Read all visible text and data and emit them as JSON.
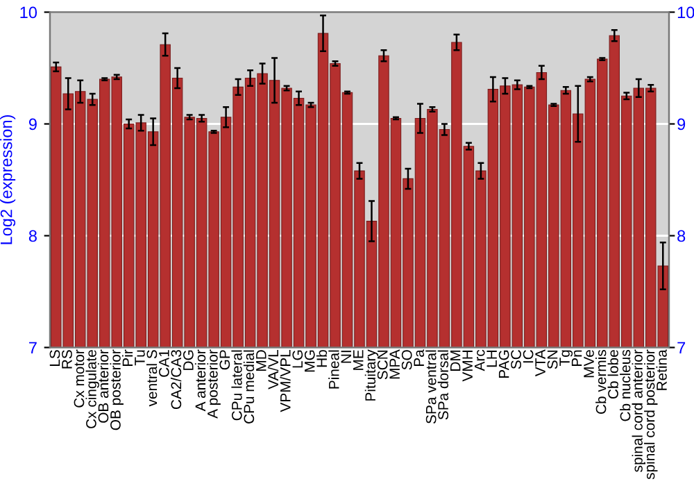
{
  "chart_data": {
    "type": "bar",
    "ylabel": "Log2 (expression)",
    "categories": [
      "LS",
      "RS",
      "Cx motor",
      "Cx cingulate",
      "OB anterior",
      "OB posterior",
      "Pir",
      "Tu",
      "ventral S",
      "CA1",
      "CA2/CA3",
      "DG",
      "A anterior",
      "A posterior",
      "GP",
      "CPu lateral",
      "CPu medial",
      "MD",
      "VA/VL",
      "VPM/VPL",
      "LG",
      "MG",
      "Hb",
      "Pineal",
      "NI",
      "ME",
      "Pituitary",
      "SCN",
      "MPA",
      "SO",
      "Pa",
      "SPa ventral",
      "SPa dorsal",
      "DM",
      "VMH",
      "Arc",
      "LH",
      "PAG",
      "SC",
      "IC",
      "VTA",
      "SN",
      "Tg",
      "Pn",
      "MVe",
      "Cb vermis",
      "Cb lobe",
      "Cb nucleus",
      "spinal cord anterior",
      "spinal cord posterior",
      "Retina"
    ],
    "values": [
      9.51,
      9.27,
      9.29,
      9.22,
      9.4,
      9.42,
      9.0,
      9.01,
      8.93,
      9.71,
      9.41,
      9.06,
      9.05,
      8.93,
      9.06,
      9.33,
      9.41,
      9.45,
      9.39,
      9.32,
      9.23,
      9.17,
      9.81,
      9.54,
      9.28,
      8.58,
      8.13,
      9.61,
      9.05,
      8.51,
      9.05,
      9.13,
      8.95,
      9.73,
      8.8,
      8.58,
      9.31,
      9.34,
      9.35,
      9.33,
      9.46,
      9.17,
      9.3,
      9.09,
      9.4,
      9.58,
      9.79,
      9.25,
      9.32,
      9.32,
      7.73
    ],
    "errors": [
      0.04,
      0.14,
      0.1,
      0.05,
      0.01,
      0.02,
      0.04,
      0.07,
      0.12,
      0.1,
      0.09,
      0.02,
      0.03,
      0.01,
      0.09,
      0.07,
      0.07,
      0.09,
      0.2,
      0.02,
      0.06,
      0.02,
      0.16,
      0.02,
      0.01,
      0.07,
      0.18,
      0.05,
      0.01,
      0.09,
      0.13,
      0.02,
      0.05,
      0.07,
      0.03,
      0.07,
      0.11,
      0.07,
      0.04,
      0.01,
      0.06,
      0.01,
      0.03,
      0.25,
      0.02,
      0.01,
      0.05,
      0.03,
      0.08,
      0.03,
      0.21
    ],
    "color": "#b5302f",
    "ylim": [
      7,
      10
    ],
    "yticks": [
      7,
      8,
      9,
      10
    ],
    "y2lim": [
      7,
      10
    ],
    "y2ticks": [
      7,
      8,
      9,
      10
    ],
    "grid": "y"
  }
}
